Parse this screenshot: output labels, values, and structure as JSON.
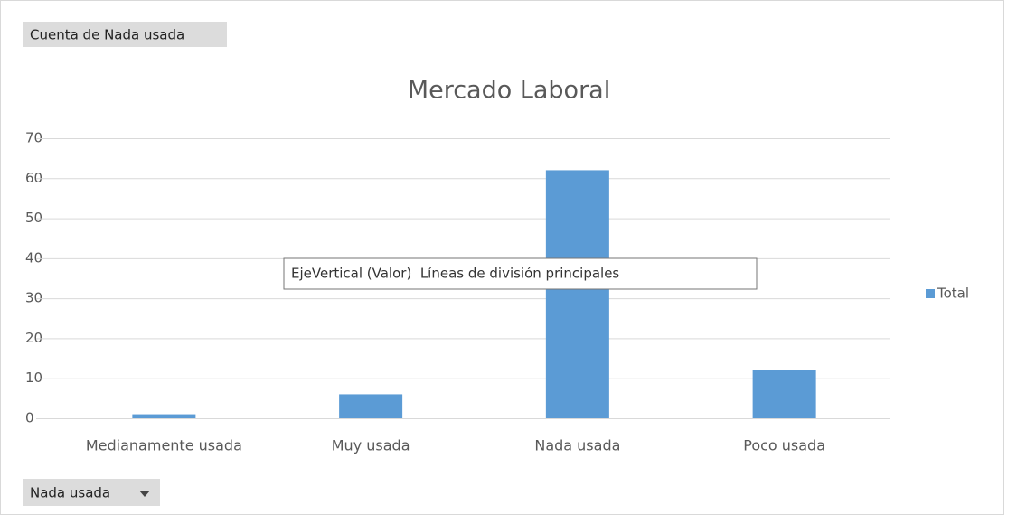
{
  "chart_data": {
    "type": "bar",
    "title": "Mercado Laboral",
    "value_field_button": "Cuenta de Nada usada",
    "axis_field_button": "Nada usada",
    "tooltip": "EjeVertical (Valor)  Líneas de división principales",
    "categories": [
      "Medianamente usada",
      "Muy usada",
      "Nada usada",
      "Poco usada"
    ],
    "series": [
      {
        "name": "Total",
        "color": "#5b9bd5",
        "values": [
          1,
          6,
          62,
          12
        ]
      }
    ],
    "ylim": [
      0,
      70
    ],
    "yticks": [
      0,
      10,
      20,
      30,
      40,
      50,
      60,
      70
    ],
    "grid": true,
    "legend": "right"
  }
}
